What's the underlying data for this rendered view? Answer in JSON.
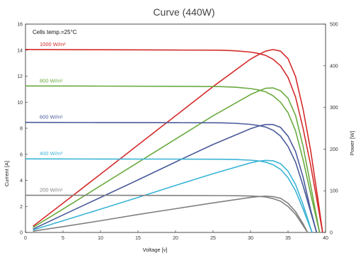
{
  "chart_data": {
    "type": "line",
    "title": "Curve (440W)",
    "xlabel": "Voltage [v]",
    "ylabel_left": "Current [A]",
    "ylabel_right": "Power [W]",
    "annotation": "Cells temp.=25°C",
    "xlim": [
      0,
      40
    ],
    "ylim_left": [
      0,
      16
    ],
    "ylim_right": [
      0,
      500
    ],
    "xticks": [
      0,
      5,
      10,
      15,
      20,
      25,
      30,
      35,
      40
    ],
    "yticks_left": [
      0,
      2,
      4,
      6,
      8,
      10,
      12,
      14,
      16
    ],
    "yticks_right": [
      0,
      100,
      200,
      300,
      400,
      500
    ],
    "grid": false,
    "series": [
      {
        "name": "1000 W/m²",
        "color": "#d42a2a",
        "current": {
          "x": [
            0,
            10,
            20,
            26,
            28,
            30,
            31,
            32,
            33,
            34,
            35,
            36,
            37,
            38,
            39,
            39.6
          ],
          "y": [
            14.05,
            14.03,
            14.01,
            14.0,
            13.95,
            13.85,
            13.75,
            13.6,
            13.3,
            12.8,
            11.9,
            10.4,
            8.0,
            5.2,
            2.0,
            0
          ]
        },
        "power": {
          "x": [
            1,
            5,
            10,
            15,
            20,
            25,
            30,
            31,
            32,
            33,
            34,
            35,
            36,
            37,
            38,
            39,
            39.6
          ],
          "y": [
            15,
            70,
            140,
            210,
            280,
            350,
            416,
            426,
            435,
            439,
            435,
            417,
            374,
            296,
            198,
            78,
            0
          ]
        }
      },
      {
        "name": "800 W/m²",
        "color": "#6aaa3e",
        "current": {
          "x": [
            0,
            10,
            20,
            26,
            28,
            30,
            31,
            32,
            33,
            34,
            35,
            36,
            37,
            38,
            39.2
          ],
          "y": [
            11.25,
            11.24,
            11.22,
            11.2,
            11.15,
            11.05,
            10.95,
            10.8,
            10.5,
            10.0,
            9.2,
            7.8,
            5.6,
            3.0,
            0
          ]
        },
        "power": {
          "x": [
            1,
            5,
            10,
            15,
            20,
            25,
            30,
            31,
            32,
            33,
            34,
            35,
            36,
            37,
            38,
            39.2
          ],
          "y": [
            12,
            56,
            112,
            168,
            224,
            280,
            331,
            339,
            346,
            347,
            340,
            322,
            281,
            207,
            114,
            0
          ]
        }
      },
      {
        "name": "600 W/m²",
        "color": "#4a5a9a",
        "current": {
          "x": [
            0,
            10,
            20,
            26,
            28,
            30,
            31,
            32,
            33,
            34,
            35,
            36,
            37,
            38.8
          ],
          "y": [
            8.45,
            8.44,
            8.43,
            8.42,
            8.38,
            8.3,
            8.22,
            8.1,
            7.85,
            7.4,
            6.6,
            5.4,
            3.6,
            0
          ]
        },
        "power": {
          "x": [
            1,
            5,
            10,
            15,
            20,
            25,
            30,
            31,
            32,
            33,
            34,
            35,
            36,
            37,
            38,
            38.8
          ],
          "y": [
            8,
            42,
            84,
            126,
            169,
            211,
            249,
            255,
            259,
            259,
            252,
            231,
            194,
            133,
            55,
            0
          ]
        }
      },
      {
        "name": "400 W/m²",
        "color": "#3ab4d6",
        "current": {
          "x": [
            0,
            10,
            20,
            26,
            28,
            30,
            31,
            32,
            33,
            34,
            35,
            36,
            37,
            38.2
          ],
          "y": [
            5.65,
            5.64,
            5.63,
            5.62,
            5.6,
            5.55,
            5.5,
            5.4,
            5.2,
            4.85,
            4.2,
            3.2,
            1.8,
            0
          ]
        },
        "power": {
          "x": [
            1,
            5,
            10,
            15,
            20,
            25,
            30,
            31,
            32,
            33,
            34,
            35,
            36,
            37,
            38.2
          ],
          "y": [
            6,
            28,
            56,
            84,
            113,
            141,
            167,
            171,
            173,
            172,
            165,
            147,
            115,
            67,
            0
          ]
        }
      },
      {
        "name": "200 W/m²",
        "color": "#808080",
        "current": {
          "x": [
            0,
            10,
            20,
            26,
            28,
            30,
            31,
            32,
            33,
            34,
            35,
            36,
            37.6
          ],
          "y": [
            2.85,
            2.85,
            2.84,
            2.83,
            2.82,
            2.8,
            2.77,
            2.72,
            2.6,
            2.4,
            2.0,
            1.4,
            0
          ]
        },
        "power": {
          "x": [
            1,
            5,
            10,
            15,
            20,
            25,
            30,
            31,
            32,
            33,
            34,
            35,
            36,
            37,
            37.6
          ],
          "y": [
            3,
            14,
            28,
            43,
            57,
            71,
            84,
            86,
            87,
            86,
            82,
            70,
            50,
            21,
            0
          ]
        }
      }
    ]
  }
}
